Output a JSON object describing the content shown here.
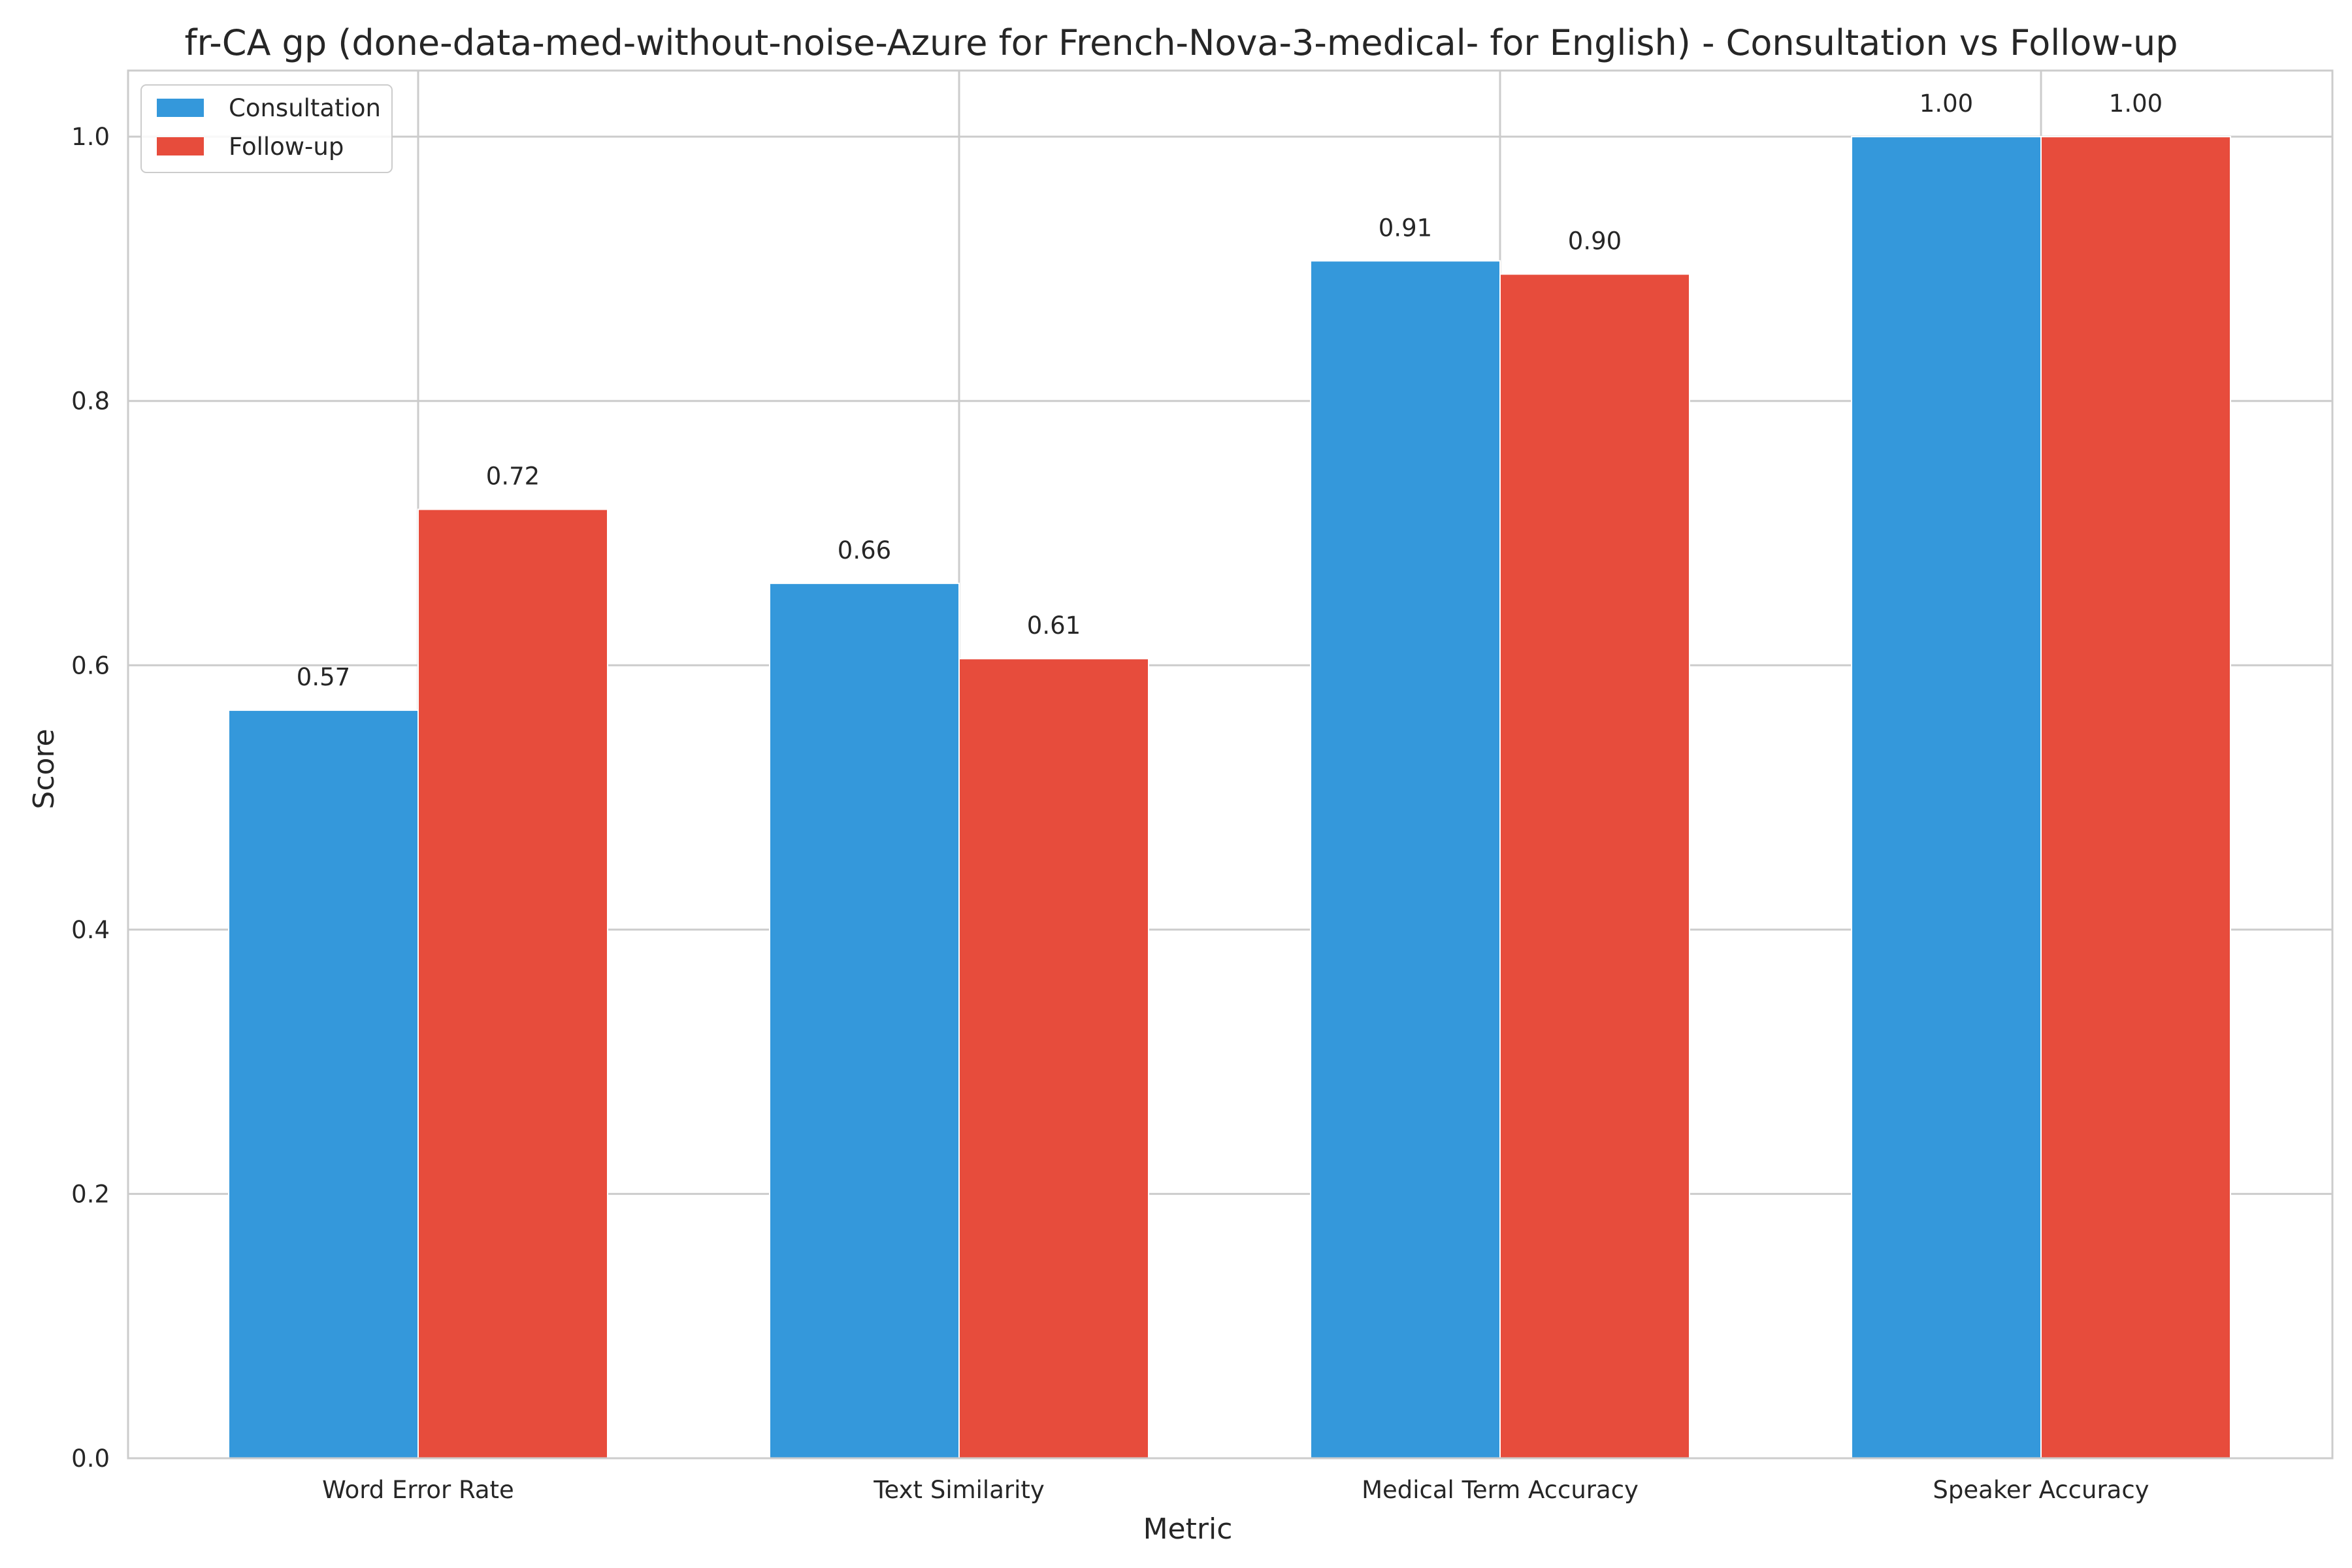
{
  "chart_data": {
    "type": "bar",
    "title": "fr-CA gp (done-data-med-without-noise-Azure for French-Nova-3-medical- for English) - Consultation vs Follow-up",
    "xlabel": "Metric",
    "ylabel": "Score",
    "categories": [
      "Word Error Rate",
      "Text Similarity",
      "Medical Term Accuracy",
      "Speaker Accuracy"
    ],
    "series": [
      {
        "name": "Consultation",
        "color": "#3498db",
        "values": [
          0.566,
          0.662,
          0.906,
          1.0
        ],
        "labels": [
          "0.57",
          "0.66",
          "0.91",
          "1.00"
        ]
      },
      {
        "name": "Follow-up",
        "color": "#e74c3c",
        "values": [
          0.718,
          0.605,
          0.896,
          1.0
        ],
        "labels": [
          "0.72",
          "0.61",
          "0.90",
          "1.00"
        ]
      }
    ],
    "ylim": [
      0,
      1.05
    ],
    "yticks": [
      "0.0",
      "0.2",
      "0.4",
      "0.6",
      "0.8",
      "1.0"
    ],
    "grid": true,
    "legend_position": "top-left"
  }
}
